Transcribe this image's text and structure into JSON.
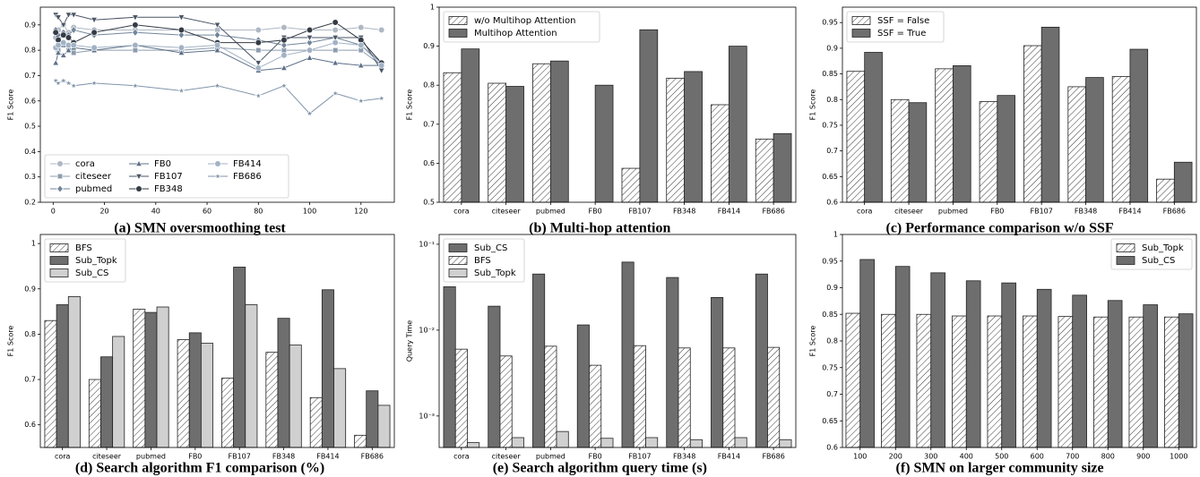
{
  "chart_data": [
    {
      "type": "line",
      "caption": "(a) SMN oversmoothing test",
      "ylabel": "F1 Score",
      "x": [
        1,
        2,
        4,
        6,
        8,
        16,
        32,
        50,
        64,
        80,
        90,
        100,
        110,
        120,
        128
      ],
      "xlim": [
        -5,
        133
      ],
      "xticks": [
        0,
        20,
        40,
        60,
        80,
        100,
        120
      ],
      "ylim": [
        0.2,
        0.97
      ],
      "yticks": [
        0.2,
        0.3,
        0.4,
        0.5,
        0.6,
        0.7,
        0.8,
        0.9
      ],
      "legend": "lower left",
      "legend_columns": 3,
      "series": [
        {
          "name": "cora",
          "color": "#aeb8c3",
          "marker": "circle",
          "values": [
            0.85,
            0.88,
            0.9,
            0.87,
            0.89,
            0.88,
            0.88,
            0.88,
            0.88,
            0.88,
            0.89,
            0.88,
            0.88,
            0.89,
            0.88
          ]
        },
        {
          "name": "citeseer",
          "color": "#8d9cad",
          "marker": "square",
          "values": [
            0.81,
            0.8,
            0.82,
            0.8,
            0.79,
            0.8,
            0.8,
            0.8,
            0.81,
            0.8,
            0.8,
            0.8,
            0.8,
            0.8,
            0.74
          ]
        },
        {
          "name": "pubmed",
          "color": "#73859b",
          "marker": "diamond",
          "values": [
            0.88,
            0.86,
            0.87,
            0.86,
            0.88,
            0.86,
            0.87,
            0.86,
            0.86,
            0.84,
            0.82,
            0.83,
            0.85,
            0.82,
            0.75
          ]
        },
        {
          "name": "FB0",
          "color": "#5d7088",
          "marker": "triangle-up",
          "values": [
            0.75,
            0.79,
            0.78,
            0.8,
            0.81,
            0.8,
            0.82,
            0.79,
            0.8,
            0.72,
            0.73,
            0.77,
            0.75,
            0.74,
            0.74
          ]
        },
        {
          "name": "FB107",
          "color": "#4a5566",
          "marker": "triangle-down",
          "values": [
            0.94,
            0.93,
            0.9,
            0.94,
            0.94,
            0.92,
            0.93,
            0.93,
            0.9,
            0.75,
            0.85,
            0.85,
            0.85,
            0.85,
            0.72
          ]
        },
        {
          "name": "FB348",
          "color": "#343b45",
          "marker": "circle",
          "values": [
            0.87,
            0.84,
            0.86,
            0.85,
            0.83,
            0.87,
            0.9,
            0.88,
            0.83,
            0.83,
            0.84,
            0.88,
            0.91,
            0.84,
            0.75
          ]
        },
        {
          "name": "FB414",
          "color": "#a2b2c5",
          "marker": "circle",
          "values": [
            0.81,
            0.82,
            0.83,
            0.82,
            0.82,
            0.81,
            0.82,
            0.81,
            0.82,
            0.73,
            0.78,
            0.8,
            0.83,
            0.82,
            0.74
          ]
        },
        {
          "name": "FB686",
          "color": "#8195aa",
          "marker": "star",
          "values": [
            0.68,
            0.67,
            0.68,
            0.67,
            0.66,
            0.67,
            0.66,
            0.64,
            0.66,
            0.62,
            0.66,
            0.55,
            0.63,
            0.6,
            0.61
          ]
        }
      ]
    },
    {
      "type": "bar",
      "caption": "(b) Multi-hop attention",
      "ylabel": "F1 Score",
      "categories": [
        "cora",
        "citeseer",
        "pubmed",
        "FB0",
        "FB107",
        "FB348",
        "FB414",
        "FB686"
      ],
      "ylim": [
        0.5,
        1.0
      ],
      "yticks": [
        0.5,
        0.6,
        0.7,
        0.8,
        0.9,
        1.0
      ],
      "legend": "upper left",
      "series": [
        {
          "name": "w/o Multihop Attention",
          "color": "#ffffff",
          "hatch": true,
          "values": [
            0.832,
            0.805,
            0.855,
            0.5,
            0.587,
            0.818,
            0.75,
            0.662
          ]
        },
        {
          "name": "Multihop Attention",
          "color": "#6e6e6e",
          "values": [
            0.893,
            0.797,
            0.862,
            0.8,
            0.942,
            0.835,
            0.9,
            0.676
          ]
        }
      ]
    },
    {
      "type": "bar",
      "caption": "(c) Performance comparison w/o SSF",
      "ylabel": "F1 Score",
      "categories": [
        "cora",
        "citeseer",
        "pubmed",
        "FB0",
        "FB107",
        "FB348",
        "FB414",
        "FB686"
      ],
      "ylim": [
        0.6,
        0.98
      ],
      "yticks": [
        0.6,
        0.65,
        0.7,
        0.75,
        0.8,
        0.85,
        0.9,
        0.95
      ],
      "legend": "upper left",
      "series": [
        {
          "name": "SSF = False",
          "color": "#ffffff",
          "hatch": true,
          "values": [
            0.855,
            0.8,
            0.86,
            0.796,
            0.905,
            0.825,
            0.845,
            0.645
          ]
        },
        {
          "name": "SSF = True",
          "color": "#6e6e6e",
          "values": [
            0.892,
            0.794,
            0.866,
            0.808,
            0.941,
            0.843,
            0.898,
            0.678
          ]
        }
      ]
    },
    {
      "type": "bar",
      "caption": "(d) Search algorithm F1 comparison (%)",
      "ylabel": "F1 Score",
      "categories": [
        "cora",
        "citeseer",
        "pubmed",
        "FB0",
        "FB107",
        "FB348",
        "FB414",
        "FB686"
      ],
      "ylim": [
        0.55,
        1.02
      ],
      "yticks": [
        0.6,
        0.7,
        0.8,
        0.9,
        1.0
      ],
      "legend": "upper left",
      "series": [
        {
          "name": "BFS",
          "color": "#ffffff",
          "hatch": true,
          "values": [
            0.83,
            0.7,
            0.855,
            0.788,
            0.703,
            0.76,
            0.66,
            0.577
          ]
        },
        {
          "name": "Sub_Topk",
          "color": "#6e6e6e",
          "values": [
            0.865,
            0.75,
            0.848,
            0.803,
            0.948,
            0.835,
            0.898,
            0.675
          ]
        },
        {
          "name": "Sub_CS",
          "color": "#d0d0d0",
          "values": [
            0.883,
            0.795,
            0.86,
            0.78,
            0.865,
            0.776,
            0.724,
            0.643
          ]
        }
      ]
    },
    {
      "type": "bar",
      "caption": "(e) Search algorithm query time (s)",
      "ylabel": "Query Time",
      "yscale": "log",
      "categories": [
        "cora",
        "citeseer",
        "pubmed",
        "FB0",
        "FB107",
        "FB348",
        "FB414",
        "FB686"
      ],
      "ylim": [
        0.00043,
        0.13
      ],
      "yticks": [
        {
          "value": 0.001,
          "label": "10⁻³"
        },
        {
          "value": 0.01,
          "label": "10⁻²"
        },
        {
          "value": 0.1,
          "label": "10⁻¹"
        }
      ],
      "legend": "upper left",
      "series": [
        {
          "name": "Sub_CS",
          "color": "#6e6e6e",
          "values": [
            0.032,
            0.019,
            0.045,
            0.0115,
            0.062,
            0.041,
            0.024,
            0.045
          ]
        },
        {
          "name": "BFS",
          "color": "#ffffff",
          "hatch": true,
          "values": [
            0.006,
            0.005,
            0.0065,
            0.0039,
            0.0066,
            0.0062,
            0.0062,
            0.0063
          ]
        },
        {
          "name": "Sub_Topk",
          "color": "#d0d0d0",
          "values": [
            0.00049,
            0.00056,
            0.00066,
            0.00055,
            0.00056,
            0.00053,
            0.00056,
            0.00053
          ]
        }
      ]
    },
    {
      "type": "bar",
      "caption": "(f) SMN on larger community size",
      "ylabel": "F1 Score",
      "categories": [
        "100",
        "200",
        "300",
        "400",
        "500",
        "600",
        "700",
        "800",
        "900",
        "1000"
      ],
      "ylim": [
        0.6,
        1.0
      ],
      "yticks": [
        0.6,
        0.65,
        0.7,
        0.75,
        0.8,
        0.85,
        0.9,
        0.95,
        1.0
      ],
      "legend": "upper right",
      "series": [
        {
          "name": "Sub_Topk",
          "color": "#ffffff",
          "hatch": true,
          "values": [
            0.852,
            0.85,
            0.85,
            0.847,
            0.847,
            0.847,
            0.846,
            0.845,
            0.845,
            0.845
          ]
        },
        {
          "name": "Sub_CS",
          "color": "#6e6e6e",
          "values": [
            0.953,
            0.94,
            0.928,
            0.913,
            0.909,
            0.897,
            0.886,
            0.876,
            0.868,
            0.851
          ]
        }
      ]
    }
  ]
}
